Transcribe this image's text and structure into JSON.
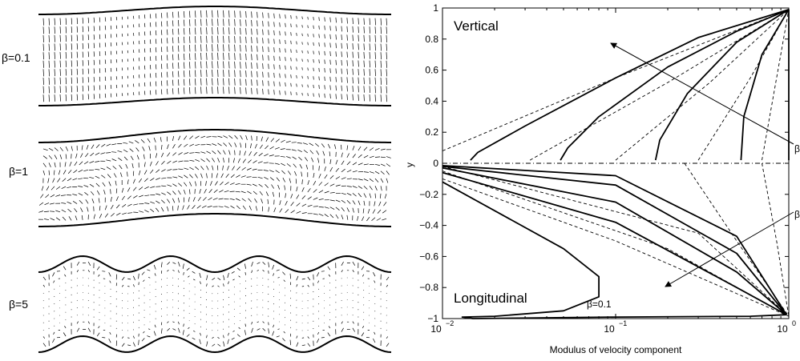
{
  "left_figure": {
    "panels": [
      {
        "label": "β=0.1",
        "beta": 0.1
      },
      {
        "label": "β=1",
        "beta": 1
      },
      {
        "label": "β=5",
        "beta": 5
      }
    ]
  },
  "chart_data": {
    "type": "line",
    "xlabel": "Modulus of velocity component",
    "ylabel": "y",
    "x_scale": "log",
    "xlim": [
      0.01,
      1
    ],
    "ylim": [
      -1,
      1
    ],
    "x_ticks": [
      {
        "value": 0.01,
        "base": "10",
        "exp": "−2"
      },
      {
        "value": 0.1,
        "base": "10",
        "exp": "−1"
      },
      {
        "value": 1,
        "base": "10",
        "exp": "0"
      }
    ],
    "y_ticks": [
      "1",
      "0.8",
      "0.6",
      "0.4",
      "0.2",
      "0",
      "−0.2",
      "−0.4",
      "−0.6",
      "−0.8",
      "−1"
    ],
    "annotations": {
      "upper_label": "Vertical",
      "lower_label": "Longitudinal",
      "curve_label": "β=0.1",
      "arrow_upper_label": "β",
      "arrow_lower_label": "β"
    },
    "vertical_solid": [
      {
        "x": [
          0.0145,
          0.016,
          0.03,
          0.1,
          0.3,
          1.0
        ],
        "y": [
          0.02,
          0.07,
          0.24,
          0.55,
          0.81,
          0.99
        ]
      },
      {
        "x": [
          0.048,
          0.053,
          0.08,
          0.2,
          0.5,
          1.0
        ],
        "y": [
          0.02,
          0.1,
          0.3,
          0.62,
          0.85,
          0.99
        ]
      },
      {
        "x": [
          0.17,
          0.18,
          0.26,
          0.5,
          1.0
        ],
        "y": [
          0.02,
          0.15,
          0.45,
          0.78,
          0.99
        ]
      },
      {
        "x": [
          0.53,
          0.55,
          0.7,
          1.0
        ],
        "y": [
          0.02,
          0.3,
          0.7,
          0.99
        ]
      },
      {
        "x": [
          1.0,
          1.0
        ],
        "y": [
          0.02,
          0.99
        ]
      }
    ],
    "vertical_dashed": [
      {
        "x": [
          0.01,
          0.1,
          1.0
        ],
        "y": [
          0.08,
          0.55,
          0.99
        ]
      },
      {
        "x": [
          0.032,
          0.2,
          1.0
        ],
        "y": [
          0.02,
          0.52,
          0.99
        ]
      },
      {
        "x": [
          0.1,
          0.35,
          1.0
        ],
        "y": [
          0.02,
          0.52,
          0.99
        ]
      },
      {
        "x": [
          0.3,
          0.6,
          1.0
        ],
        "y": [
          0.02,
          0.55,
          0.99
        ]
      },
      {
        "x": [
          0.7,
          1.0
        ],
        "y": [
          0.02,
          0.99
        ]
      }
    ],
    "longitudinal_solid": [
      {
        "x": [
          0.01,
          0.05,
          0.08,
          0.08,
          0.05,
          0.02,
          0.013,
          0.015,
          0.1,
          0.6,
          0.97
        ],
        "y": [
          -0.12,
          -0.55,
          -0.73,
          -0.86,
          -0.95,
          -0.985,
          -0.99,
          -1.0,
          -0.99,
          -0.985,
          -0.975
        ]
      },
      {
        "x": [
          0.01,
          0.1,
          0.5,
          0.97
        ],
        "y": [
          -0.06,
          -0.38,
          -0.8,
          -0.975
        ]
      },
      {
        "x": [
          0.01,
          0.1,
          0.5,
          0.97
        ],
        "y": [
          -0.03,
          -0.25,
          -0.7,
          -0.975
        ]
      },
      {
        "x": [
          0.01,
          0.1,
          0.5,
          0.97
        ],
        "y": [
          -0.02,
          -0.14,
          -0.58,
          -0.975
        ]
      },
      {
        "x": [
          0.01,
          0.1,
          0.5,
          0.97
        ],
        "y": [
          -0.015,
          -0.08,
          -0.47,
          -0.975
        ]
      }
    ],
    "longitudinal_dashed": [
      {
        "x": [
          0.01,
          0.1,
          1.0
        ],
        "y": [
          -0.1,
          -0.5,
          -0.985
        ]
      },
      {
        "x": [
          0.01,
          0.2,
          1.0
        ],
        "y": [
          -0.05,
          -0.55,
          -0.985
        ]
      },
      {
        "x": [
          0.01,
          0.3,
          1.0
        ],
        "y": [
          -0.02,
          -0.45,
          -0.985
        ]
      },
      {
        "x": [
          0.25,
          0.5,
          1.0
        ],
        "y": [
          0.0,
          -0.5,
          -0.985
        ]
      },
      {
        "x": [
          0.7,
          0.85,
          1.0
        ],
        "y": [
          0.0,
          -0.5,
          -0.985
        ]
      }
    ]
  }
}
